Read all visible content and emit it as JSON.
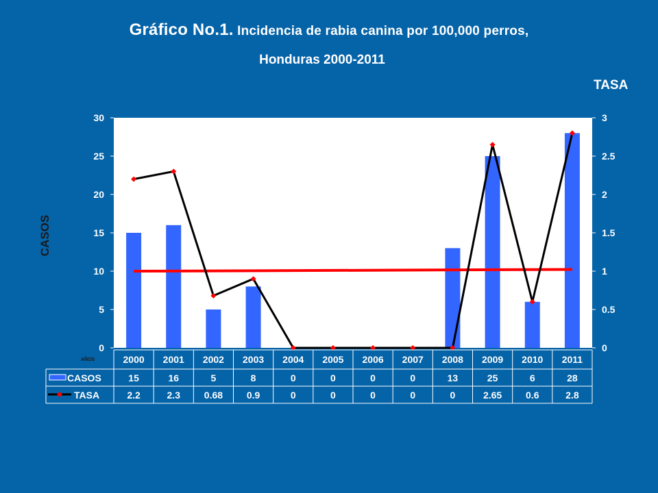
{
  "title": {
    "part1": "Gráfico No.1.",
    "part2": " Incidencia de rabia canina por 100,000 perros,",
    "line2": "Honduras 2000-2011"
  },
  "right_axis_title": "TASA",
  "left_axis_title": "CASOS",
  "category_axis_title": "AÑOS",
  "colors": {
    "background": "#0563a8",
    "plot_area": "#ffffff",
    "bars": "#3366ff",
    "tasa_line": "#000000",
    "tasa_markers": "#ff0000",
    "trend_line": "#ff0000",
    "grid_text": "#ffffff"
  },
  "chart_data": {
    "type": "bar",
    "categories": [
      "2000",
      "2001",
      "2002",
      "2003",
      "2004",
      "2005",
      "2006",
      "2007",
      "2008",
      "2009",
      "2010",
      "2011"
    ],
    "series": [
      {
        "name": "CASOS",
        "type": "bar",
        "axis": "left",
        "values": [
          15,
          16,
          5,
          8,
          0,
          0,
          0,
          0,
          13,
          25,
          6,
          28
        ]
      },
      {
        "name": "TASA",
        "type": "line",
        "axis": "right",
        "values": [
          2.2,
          2.3,
          0.68,
          0.9,
          0,
          0,
          0,
          0,
          0,
          2.65,
          0.6,
          2.8
        ]
      }
    ],
    "trendline": {
      "series": "TASA",
      "type": "linear",
      "color": "#ff0000"
    },
    "table_values": {
      "CASOS": [
        "15",
        "16",
        "5",
        "8",
        "0",
        "0",
        "0",
        "0",
        "13",
        "25",
        "6",
        "28"
      ],
      "TASA": [
        "2.2",
        "2.3",
        "0.68",
        "0.9",
        "0",
        "0",
        "0",
        "0",
        "0",
        "2.65",
        "0.6",
        "2.8"
      ]
    },
    "y_left": {
      "label": "CASOS",
      "lim": [
        0,
        30
      ],
      "ticks": [
        "0",
        "5",
        "10",
        "15",
        "20",
        "25",
        "30"
      ]
    },
    "y_right": {
      "label": "TASA",
      "lim": [
        0,
        3
      ],
      "ticks": [
        "0",
        "0.5",
        "1",
        "1.5",
        "2",
        "2.5",
        "3"
      ]
    },
    "xlabel": "AÑOS",
    "grid": false,
    "legend": "data-table"
  }
}
